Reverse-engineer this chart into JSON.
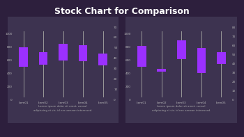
{
  "title": "Stock Chart for Comparison",
  "title_color": "#ffffff",
  "title_fontsize": 9,
  "bg_color": "#2d1f3d",
  "panel_bg": "#3d3350",
  "panel_border": "#554d68",
  "chart1": {
    "categories": [
      "Item01",
      "Item02",
      "Item03",
      "Item04",
      "Item05"
    ],
    "open": [
      500,
      530,
      600,
      580,
      520
    ],
    "close": [
      800,
      720,
      850,
      830,
      700
    ],
    "high": [
      1040,
      1040,
      1040,
      1040,
      1040
    ],
    "low": [
      50,
      50,
      50,
      50,
      50
    ],
    "ylim_left": [
      0,
      1100
    ],
    "ylim_right": [
      0,
      70
    ],
    "yticks_left": [
      0,
      200,
      400,
      600,
      800,
      1000
    ],
    "yticks_right": [
      0,
      10,
      20,
      30,
      40,
      50,
      60,
      70
    ],
    "box_color": "#9b30ff",
    "box_color2": "#7b20df",
    "wick_color": "#999999",
    "text": "Lorem ipsum dolor sit amet, consul\nadipiscing et vis, id nec aenean interessed."
  },
  "chart2": {
    "categories": [
      "Item01",
      "Item02",
      "Item03",
      "Item04",
      "Item05"
    ],
    "open": [
      500,
      430,
      620,
      400,
      540
    ],
    "close": [
      820,
      470,
      900,
      780,
      720
    ],
    "high": [
      1040,
      1040,
      1040,
      1040,
      1040
    ],
    "low": [
      50,
      50,
      50,
      50,
      50
    ],
    "ylim_left": [
      0,
      1100
    ],
    "ylim_right": [
      0,
      80
    ],
    "yticks_left": [
      0,
      200,
      400,
      600,
      800,
      1000
    ],
    "yticks_right": [
      0,
      10,
      20,
      30,
      40,
      50,
      60,
      70,
      80
    ],
    "box_color": "#9b30ff",
    "box_color2": "#7b20df",
    "wick_color": "#999999",
    "text": "Lorem ipsum dolor sit amet, consul\nadipiscing et vis, id nec aenean interessed."
  }
}
